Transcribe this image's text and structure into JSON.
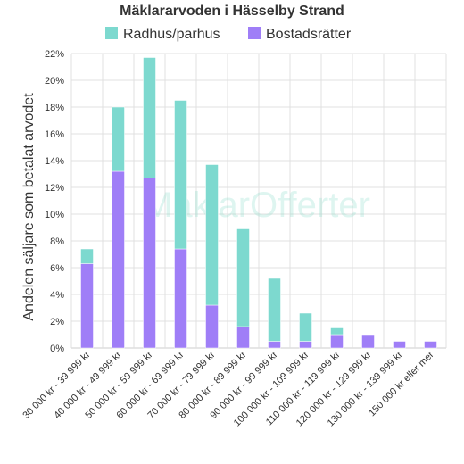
{
  "chart_data": {
    "type": "bar",
    "stacked": true,
    "title": "Mäklararvoden i Hässelby Strand",
    "ylabel": "Andelen säljare som betalat arvodet",
    "xlabel": "",
    "ylim": [
      0,
      22
    ],
    "y_ticks": [
      0,
      2,
      4,
      6,
      8,
      10,
      12,
      14,
      16,
      18,
      20,
      22
    ],
    "y_tick_suffix": "%",
    "grid": true,
    "legend_position": "top",
    "categories": [
      "30 000 kr - 39 999 kr",
      "40 000 kr - 49 999 kr",
      "50 000 kr - 59 999 kr",
      "60 000 kr - 69 999 kr",
      "70 000 kr - 79 999 kr",
      "80 000 kr - 89 999 kr",
      "90 000 kr - 99 999 kr",
      "100 000 kr - 109 999 kr",
      "110 000 kr - 119 999 kr",
      "120 000 kr - 129 999 kr",
      "130 000 kr - 139 999 kr",
      "150 000 kr eller mer"
    ],
    "series": [
      {
        "name": "Bostadsrätter",
        "color": "#9f7ef7",
        "values": [
          6.3,
          13.2,
          12.7,
          7.4,
          3.2,
          1.6,
          0.5,
          0.5,
          1.0,
          1.0,
          0.5,
          0.5
        ]
      },
      {
        "name": "Radhus/parhus",
        "color": "#7dd9cf",
        "values": [
          1.1,
          4.8,
          9.0,
          11.1,
          10.5,
          7.3,
          4.7,
          2.1,
          0.5,
          0,
          0,
          0
        ]
      }
    ],
    "legend_order": [
      "Radhus/parhus",
      "Bostadsrätter"
    ]
  },
  "watermark": "MäklarOfferter"
}
